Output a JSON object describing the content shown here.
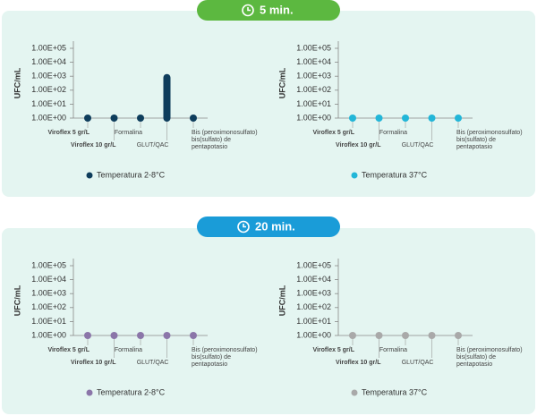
{
  "panels": [
    "5 min.",
    "20 min."
  ],
  "chart_data": [
    {
      "type": "dot",
      "y_label": "UFC/mL",
      "categories": [
        "Viroflex 5 gr/L",
        "Viroflex 10 gr/L",
        "Formalina",
        "GLUT/QAC",
        [
          "Bis (peroximonosulfato)",
          "bis(sulfato) de",
          "pentapotasio"
        ]
      ],
      "series": [
        {
          "name": "Temperatura 2-8°C",
          "color": "#0e3d5c",
          "values": [
            1,
            1,
            1,
            800,
            1
          ]
        }
      ],
      "log_scale": true,
      "ylim": [
        1,
        100000
      ],
      "yticks": [
        {
          "value": 1,
          "label": "1.00E+00"
        },
        {
          "value": 10,
          "label": "1.00E+01"
        },
        {
          "value": 100,
          "label": "1.00E+02"
        },
        {
          "value": 1000,
          "label": "1.00E+03"
        },
        {
          "value": 10000,
          "label": "1.00E+04"
        },
        {
          "value": 100000,
          "label": "1.00E+05"
        }
      ]
    },
    {
      "type": "dot",
      "y_label": "UFC/mL",
      "categories": [
        "Viroflex 5 gr/L",
        "Viroflex 10 gr/L",
        "Formalina",
        "GLUT/QAC",
        [
          "Bis (peroximonosulfato)",
          "bis(sulfato) de",
          "pentapotasio"
        ]
      ],
      "series": [
        {
          "name": "Temperatura 37°C",
          "color": "#22b6d8",
          "values": [
            1,
            1,
            1,
            1,
            1
          ]
        }
      ],
      "log_scale": true,
      "ylim": [
        1,
        100000
      ],
      "yticks": [
        {
          "value": 1,
          "label": "1.00E+00"
        },
        {
          "value": 10,
          "label": "1.00E+01"
        },
        {
          "value": 100,
          "label": "1.00E+02"
        },
        {
          "value": 1000,
          "label": "1.00E+03"
        },
        {
          "value": 10000,
          "label": "1.00E+04"
        },
        {
          "value": 100000,
          "label": "1.00E+05"
        }
      ]
    },
    {
      "type": "dot",
      "y_label": "UFC/mL",
      "categories": [
        "Viroflex 5 gr/L",
        "Viroflex 10 gr/L",
        "Formalina",
        "GLUT/QAC",
        [
          "Bis (peroximonosulfato)",
          "bis(sulfato) de",
          "pentapotasio"
        ]
      ],
      "series": [
        {
          "name": "Temperatura 2-8°C",
          "color": "#8b76a9",
          "values": [
            1,
            1,
            1,
            1,
            1
          ]
        }
      ],
      "log_scale": true,
      "ylim": [
        1,
        100000
      ],
      "yticks": [
        {
          "value": 1,
          "label": "1.00E+00"
        },
        {
          "value": 10,
          "label": "1.00E+01"
        },
        {
          "value": 100,
          "label": "1.00E+02"
        },
        {
          "value": 1000,
          "label": "1.00E+03"
        },
        {
          "value": 10000,
          "label": "1.00E+04"
        },
        {
          "value": 100000,
          "label": "1.00E+05"
        }
      ]
    },
    {
      "type": "dot",
      "y_label": "UFC/mL",
      "categories": [
        "Viroflex 5 gr/L",
        "Viroflex 10 gr/L",
        "Formalina",
        "GLUT/QAC",
        [
          "Bis (peroximonosulfato)",
          "bis(sulfato) de",
          "pentapotasio"
        ]
      ],
      "series": [
        {
          "name": "Temperatura 37°C",
          "color": "#a9a9a9",
          "values": [
            1,
            1,
            1,
            1,
            1
          ]
        }
      ],
      "log_scale": true,
      "ylim": [
        1,
        100000
      ],
      "yticks": [
        {
          "value": 1,
          "label": "1.00E+00"
        },
        {
          "value": 10,
          "label": "1.00E+01"
        },
        {
          "value": 100,
          "label": "1.00E+02"
        },
        {
          "value": 1000,
          "label": "1.00E+03"
        },
        {
          "value": 10000,
          "label": "1.00E+04"
        },
        {
          "value": 100000,
          "label": "1.00E+05"
        }
      ]
    }
  ]
}
